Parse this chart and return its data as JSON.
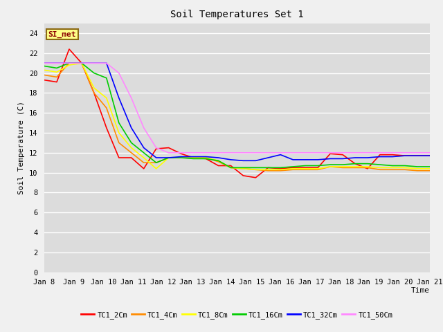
{
  "title": "Soil Temperatures Set 1",
  "xlabel": "Time",
  "ylabel": "Soil Temperature (C)",
  "ylim": [
    0,
    25
  ],
  "yticks": [
    0,
    2,
    4,
    6,
    8,
    10,
    12,
    14,
    16,
    18,
    20,
    22,
    24
  ],
  "xtick_labels": [
    "Jan 8",
    "Jan 9",
    "Jan 10",
    "Jan 11",
    "Jan 12",
    "Jan 13",
    "Jan 14",
    "Jan 15",
    "Jan 16",
    "Jan 17",
    "Jan 18",
    "Jan 19",
    "Jan 20",
    "Jan 21"
  ],
  "annotation_text": "SI_met",
  "annotation_color": "#8B0000",
  "annotation_bg": "#FFFF88",
  "annotation_border": "#8B6914",
  "series": {
    "TC1_2Cm": {
      "color": "#FF0000",
      "data": [
        19.3,
        19.1,
        22.4,
        21.0,
        18.0,
        14.5,
        11.5,
        11.5,
        10.4,
        12.4,
        12.5,
        11.9,
        11.5,
        11.4,
        10.7,
        10.7,
        9.7,
        9.5,
        10.5,
        10.4,
        10.5,
        10.5,
        10.5,
        11.9,
        11.8,
        10.9,
        10.4,
        11.8,
        11.8,
        11.7,
        11.7,
        11.7
      ]
    },
    "TC1_4Cm": {
      "color": "#FF8C00",
      "data": [
        19.8,
        19.6,
        21.0,
        21.0,
        18.0,
        16.5,
        13.0,
        12.0,
        11.0,
        11.0,
        11.5,
        11.5,
        11.5,
        11.5,
        11.1,
        10.5,
        10.4,
        10.3,
        10.2,
        10.2,
        10.3,
        10.3,
        10.3,
        10.6,
        10.5,
        10.5,
        10.5,
        10.3,
        10.3,
        10.3,
        10.2,
        10.2
      ]
    },
    "TC1_8Cm": {
      "color": "#FFFF00",
      "data": [
        20.3,
        20.1,
        20.8,
        21.0,
        18.5,
        17.5,
        14.0,
        12.5,
        11.5,
        10.4,
        11.5,
        11.5,
        11.5,
        11.5,
        11.2,
        10.5,
        10.4,
        10.3,
        10.3,
        10.3,
        10.4,
        10.4,
        10.4,
        10.6,
        10.6,
        10.6,
        10.6,
        10.5,
        10.5,
        10.5,
        10.4,
        10.4
      ]
    },
    "TC1_16Cm": {
      "color": "#00CC00",
      "data": [
        20.7,
        20.5,
        21.0,
        21.0,
        20.0,
        19.5,
        15.0,
        13.0,
        12.0,
        11.0,
        11.5,
        11.5,
        11.4,
        11.4,
        11.2,
        10.5,
        10.5,
        10.5,
        10.5,
        10.5,
        10.6,
        10.7,
        10.7,
        10.8,
        10.8,
        10.9,
        10.9,
        10.8,
        10.7,
        10.7,
        10.6,
        10.6
      ]
    },
    "TC1_32Cm": {
      "color": "#0000FF",
      "data": [
        21.0,
        21.0,
        21.0,
        21.0,
        21.0,
        21.0,
        17.5,
        14.5,
        12.5,
        11.5,
        11.5,
        11.6,
        11.6,
        11.6,
        11.5,
        11.3,
        11.2,
        11.2,
        11.5,
        11.8,
        11.3,
        11.3,
        11.3,
        11.4,
        11.4,
        11.5,
        11.5,
        11.6,
        11.6,
        11.7,
        11.7,
        11.7
      ]
    },
    "TC1_50Cm": {
      "color": "#FF88FF",
      "data": [
        21.0,
        21.0,
        21.0,
        21.0,
        21.0,
        21.0,
        20.0,
        17.5,
        14.5,
        12.5,
        12.0,
        12.0,
        12.0,
        12.0,
        12.0,
        12.0,
        12.0,
        12.0,
        12.0,
        12.0,
        12.0,
        12.0,
        12.0,
        12.0,
        12.0,
        12.0,
        12.0,
        12.0,
        12.0,
        12.0,
        12.0,
        12.0
      ]
    }
  },
  "bg_color": "#DCDCDC",
  "grid_color": "#FFFFFF",
  "fig_bg": "#F0F0F0",
  "linewidth": 1.2,
  "legend_colors": [
    [
      "#FF0000",
      "TC1_2Cm"
    ],
    [
      "#FF8C00",
      "TC1_4Cm"
    ],
    [
      "#FFFF00",
      "TC1_8Cm"
    ],
    [
      "#00CC00",
      "TC1_16Cm"
    ],
    [
      "#0000FF",
      "TC1_32Cm"
    ],
    [
      "#FF88FF",
      "TC1_50Cm"
    ]
  ]
}
